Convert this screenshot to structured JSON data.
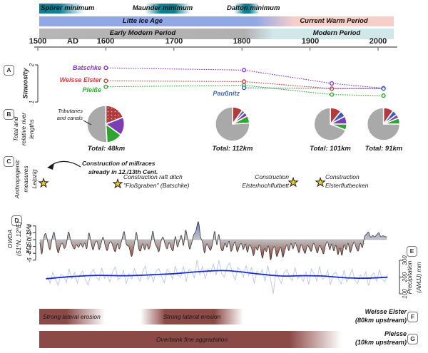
{
  "icons": {
    "star": "★"
  },
  "timeline": {
    "solar_minima": [
      {
        "label": "Spörer minimum"
      },
      {
        "label": "Maunder minimum"
      },
      {
        "label": "Dalton minimum"
      }
    ],
    "climate_bar": {
      "left": "Litte Ice Age",
      "right": "Current Warm Period"
    },
    "culture_bar": {
      "left": "Early Modern Period",
      "right": "Modern Period"
    },
    "axis_labels": [
      "1500",
      "AD",
      "1600",
      "1700",
      "1800",
      "1900",
      "2000"
    ]
  },
  "panels": {
    "A": {
      "badge": "A",
      "ylabel": "Sinuosity"
    },
    "B": {
      "badge": "B",
      "ylabel_lines": [
        "Total and",
        "relative river",
        "lengths"
      ],
      "annotation_lines": [
        "Tributaries",
        "and canals"
      ]
    },
    "C": {
      "badge": "C",
      "ylabel_lines": [
        "Anthropogenic",
        "measures",
        "Leipzig"
      ],
      "events": [
        {
          "lines": [
            "Construction of millraces",
            "already in 12./13th Cent."
          ]
        },
        {
          "lines": [
            "Construction raft ditch",
            "\"Floßgraben\" (Batschke)"
          ]
        },
        {
          "lines": [
            "Construction",
            "Elsterhochflutbett"
          ]
        },
        {
          "lines": [
            "Construction",
            "Elsterflutbecken"
          ]
        }
      ]
    },
    "D": {
      "badge": "D",
      "ylabel_lines": [
        "OWDA",
        "(51°N, 12°E)",
        "PDSI (JJA)"
      ]
    },
    "E": {
      "badge": "E",
      "ylabel_lines": [
        "Precipitation",
        "(AMJJ) mm"
      ]
    },
    "F": {
      "badge": "F",
      "river_lines": [
        "Weisse Elster",
        "(80km upstream)"
      ],
      "bars": [
        {
          "label": "Strong lateral erosion"
        },
        {
          "label": "Strong lateral erosion"
        }
      ]
    },
    "G": {
      "badge": "G",
      "river_lines": [
        "Pleisse",
        "(10km upstream)"
      ],
      "bars": [
        {
          "label": "Overbank fine aggradation"
        }
      ]
    }
  },
  "chart_data": {
    "sinuosity": {
      "type": "line",
      "ylabel": "Sinuosity",
      "ylim": [
        1,
        2
      ],
      "yticks": [
        2,
        1
      ],
      "x_range_years": [
        1600,
        2008
      ],
      "line_style": "dotted",
      "marker": "open-circle",
      "series": [
        {
          "name": "Batschke",
          "color": "#8c36cf",
          "points": [
            [
              1600,
              1.92
            ],
            [
              1803,
              1.86
            ],
            [
              1932,
              1.5
            ],
            [
              2008,
              1.37
            ]
          ]
        },
        {
          "name": "Weisse Elster",
          "color": "#cf4040",
          "points": [
            [
              1600,
              1.57
            ],
            [
              1803,
              1.55
            ],
            [
              1932,
              1.36
            ],
            [
              2008,
              1.37
            ]
          ]
        },
        {
          "name": "Pleiße",
          "color": "#2fae2f",
          "points": [
            [
              1600,
              1.41
            ],
            [
              1803,
              1.45
            ],
            [
              1932,
              1.2
            ],
            [
              2008,
              1.17
            ]
          ]
        },
        {
          "name": "Paußnitz",
          "color": "#3a64cc",
          "points": [
            [
              1803,
              1.38
            ],
            [
              2008,
              1.36
            ]
          ]
        }
      ]
    },
    "river_lengths": {
      "type": "pie",
      "pies": [
        {
          "total_label": "Total: 48km",
          "year": 1600,
          "radius": 26,
          "slices": [
            {
              "name": "weisse-elster",
              "color": "#b23b3e",
              "pct": 19,
              "dotted": true
            },
            {
              "name": "batschke",
              "color": "#7d3db3",
              "pct": 16
            },
            {
              "name": "pleisse",
              "color": "#2fa52f",
              "pct": 14
            },
            {
              "name": "tributaries-and-canals",
              "color": "#a9a9a9",
              "pct": 51
            }
          ]
        },
        {
          "total_label": "Total: 112km",
          "year": 1786,
          "radius": 24,
          "slices": [
            {
              "name": "weisse-elster",
              "color": "#b23b3e",
              "pct": 10
            },
            {
              "name": "paussnitz",
              "color": "#3a5db5",
              "pct": 3
            },
            {
              "name": "batschke",
              "color": "#7d3db3",
              "pct": 4
            },
            {
              "name": "pleisse",
              "color": "#2fa52f",
              "pct": 7
            },
            {
              "name": "tributaries-and-canals",
              "color": "#a9a9a9",
              "pct": 76
            }
          ]
        },
        {
          "total_label": "Total: 101km",
          "year": 1930,
          "radius": 23,
          "slices": [
            {
              "name": "weisse-elster",
              "color": "#b23b3e",
              "pct": 11
            },
            {
              "name": "paussnitz",
              "color": "#3a5db5",
              "pct": 6
            },
            {
              "name": "batschke",
              "color": "#7d3db3",
              "pct": 8
            },
            {
              "name": "pleisse",
              "color": "#2fa52f",
              "pct": 6
            },
            {
              "name": "tributaries-and-canals",
              "color": "#a9a9a9",
              "pct": 69
            }
          ]
        },
        {
          "total_label": "Total: 91km",
          "year": 2008,
          "radius": 23,
          "slices": [
            {
              "name": "weisse-elster",
              "color": "#b23b3e",
              "pct": 10
            },
            {
              "name": "paussnitz",
              "color": "#3a5db5",
              "pct": 5
            },
            {
              "name": "batschke",
              "color": "#7d3db3",
              "pct": 4
            },
            {
              "name": "pleisse",
              "color": "#2fa52f",
              "pct": 6
            },
            {
              "name": "tributaries-and-canals",
              "color": "#a9a9a9",
              "pct": 75
            }
          ]
        }
      ]
    },
    "pdsi": {
      "type": "area",
      "ylabel": "PDSI (JJA)",
      "ylim": [
        -6,
        4
      ],
      "yticks": [
        4,
        2,
        0,
        -2,
        -4,
        -6
      ],
      "points": [
        [
          1503,
          -0.8
        ],
        [
          1506,
          -4.2
        ],
        [
          1509,
          0.6
        ],
        [
          1512,
          1.7
        ],
        [
          1515,
          -1.1
        ],
        [
          1518,
          -2.9
        ],
        [
          1521,
          0.4
        ],
        [
          1524,
          2.1
        ],
        [
          1527,
          -1.6
        ],
        [
          1530,
          -3.9
        ],
        [
          1533,
          -1.9
        ],
        [
          1536,
          -1.1
        ],
        [
          1539,
          -2.6
        ],
        [
          1542,
          -1.3
        ],
        [
          1545,
          2.2
        ],
        [
          1548,
          0.1
        ],
        [
          1551,
          -1.9
        ],
        [
          1554,
          -2.7
        ],
        [
          1557,
          -1.5
        ],
        [
          1560,
          -2.3
        ],
        [
          1563,
          -1.1
        ],
        [
          1566,
          -2.2
        ],
        [
          1569,
          -1.0
        ],
        [
          1572,
          -2.6
        ],
        [
          1575,
          1.9
        ],
        [
          1578,
          -0.6
        ],
        [
          1581,
          -3.0
        ],
        [
          1584,
          -1.1
        ],
        [
          1587,
          -0.5
        ],
        [
          1590,
          -2.9
        ],
        [
          1593,
          -1.2
        ],
        [
          1596,
          0.7
        ],
        [
          1599,
          -1.7
        ],
        [
          1602,
          -3.2
        ],
        [
          1605,
          -1.1
        ],
        [
          1608,
          -0.7
        ],
        [
          1611,
          -2.4
        ],
        [
          1614,
          -3.5
        ],
        [
          1617,
          -1.2
        ],
        [
          1620,
          -2.7
        ],
        [
          1624,
          0.4
        ],
        [
          1627,
          2.3
        ],
        [
          1630,
          -1.3
        ],
        [
          1634,
          -2.1
        ],
        [
          1638,
          -4.9
        ],
        [
          1642,
          -1.1
        ],
        [
          1645,
          2.1
        ],
        [
          1648,
          -2.3
        ],
        [
          1651,
          -3.3
        ],
        [
          1654,
          -1.2
        ],
        [
          1657,
          -3.0
        ],
        [
          1660,
          -1.4
        ],
        [
          1663,
          -2.8
        ],
        [
          1666,
          -1.1
        ],
        [
          1669,
          2.5
        ],
        [
          1672,
          -0.9
        ],
        [
          1675,
          -2.2
        ],
        [
          1678,
          -3.5
        ],
        [
          1681,
          -0.6
        ],
        [
          1684,
          0.7
        ],
        [
          1687,
          -1.3
        ],
        [
          1690,
          -2.7
        ],
        [
          1693,
          -0.9
        ],
        [
          1696,
          -2.5
        ],
        [
          1699,
          -3.1
        ],
        [
          1702,
          0.9
        ],
        [
          1705,
          -2.1
        ],
        [
          1708,
          -0.5
        ],
        [
          1711,
          1.2
        ],
        [
          1714,
          -1.7
        ],
        [
          1717,
          2.7
        ],
        [
          1720,
          0.5
        ],
        [
          1723,
          -2.7
        ],
        [
          1726,
          -1.1
        ],
        [
          1729,
          1.4
        ],
        [
          1732,
          2.3
        ],
        [
          1736,
          5.2
        ],
        [
          1739,
          0.9
        ],
        [
          1742,
          -0.7
        ],
        [
          1745,
          -3.9
        ],
        [
          1748,
          -1.3
        ],
        [
          1751,
          -2.2
        ],
        [
          1754,
          -3.1
        ],
        [
          1757,
          -0.9
        ],
        [
          1760,
          2.4
        ],
        [
          1763,
          -1.5
        ],
        [
          1766,
          1.5
        ],
        [
          1769,
          -2.4
        ],
        [
          1772,
          -3.2
        ],
        [
          1775,
          -1.1
        ],
        [
          1778,
          -2.2
        ],
        [
          1781,
          -0.5
        ],
        [
          1784,
          -3.4
        ],
        [
          1787,
          -1.9
        ],
        [
          1790,
          -0.7
        ],
        [
          1793,
          -3.5
        ],
        [
          1796,
          -2.1
        ],
        [
          1799,
          -1.1
        ],
        [
          1802,
          -2.9
        ],
        [
          1805,
          -1.3
        ],
        [
          1808,
          -3.7
        ],
        [
          1811,
          -1.6
        ],
        [
          1814,
          -2.5
        ],
        [
          1817,
          -4.7
        ],
        [
          1820,
          -2.3
        ],
        [
          1823,
          -3.1
        ],
        [
          1826,
          -1.6
        ],
        [
          1830,
          -5.4
        ],
        [
          1833,
          -2.7
        ],
        [
          1836,
          -3.5
        ],
        [
          1839,
          -1.9
        ],
        [
          1842,
          -5.9
        ],
        [
          1845,
          -3.1
        ],
        [
          1848,
          -2.1
        ],
        [
          1851,
          -4.9
        ],
        [
          1854,
          -3.5
        ],
        [
          1857,
          -2.3
        ],
        [
          1860,
          -5.1
        ],
        [
          1863,
          -3.1
        ],
        [
          1866,
          -1.5
        ],
        [
          1869,
          -3.2
        ],
        [
          1872,
          -1.1
        ],
        [
          1875,
          -2.7
        ],
        [
          1878,
          -0.9
        ],
        [
          1881,
          -2.3
        ],
        [
          1884,
          -3.8
        ],
        [
          1887,
          -1.5
        ],
        [
          1890,
          -2.9
        ],
        [
          1893,
          -4.0
        ],
        [
          1896,
          -1.7
        ],
        [
          1899,
          -2.5
        ],
        [
          1902,
          -3.4
        ],
        [
          1905,
          -1.1
        ],
        [
          1908,
          -2.3
        ],
        [
          1911,
          -3.9
        ],
        [
          1914,
          -1.7
        ],
        [
          1917,
          -2.9
        ],
        [
          1920,
          -4.1
        ],
        [
          1923,
          -1.5
        ],
        [
          1926,
          -0.7
        ],
        [
          1929,
          -2.9
        ],
        [
          1932,
          -1.3
        ],
        [
          1935,
          -3.3
        ],
        [
          1938,
          -1.7
        ],
        [
          1941,
          -4.4
        ],
        [
          1944,
          -2.5
        ],
        [
          1947,
          -4.6
        ],
        [
          1950,
          -1.5
        ],
        [
          1953,
          -2.9
        ],
        [
          1956,
          -1.1
        ],
        [
          1959,
          -3.7
        ],
        [
          1962,
          -2.1
        ],
        [
          1965,
          -0.7
        ],
        [
          1968,
          -2.5
        ],
        [
          1971,
          -3.3
        ],
        [
          1974,
          -1.1
        ],
        [
          1977,
          -2.3
        ],
        [
          1980,
          0.8
        ],
        [
          1983,
          1.6
        ],
        [
          1986,
          2.2
        ],
        [
          1989,
          0.7
        ],
        [
          1992,
          1.2
        ],
        [
          1995,
          0.8
        ],
        [
          1998,
          1.4
        ],
        [
          2001,
          2.0
        ],
        [
          2004,
          0.9
        ],
        [
          2007,
          1.1
        ],
        [
          2010,
          0.9
        ],
        [
          2013,
          0.8
        ]
      ]
    },
    "precipitation": {
      "type": "line",
      "ylabel": "Precipitation (AMJJ) mm",
      "ylim": [
        100,
        300
      ],
      "yticks": [
        300,
        200,
        100
      ],
      "trend": [
        [
          1512,
          190
        ],
        [
          1550,
          203
        ],
        [
          1590,
          210
        ],
        [
          1630,
          208
        ],
        [
          1670,
          214
        ],
        [
          1700,
          220
        ],
        [
          1730,
          230
        ],
        [
          1760,
          238
        ],
        [
          1780,
          238
        ],
        [
          1800,
          230
        ],
        [
          1830,
          216
        ],
        [
          1860,
          206
        ],
        [
          1890,
          208
        ],
        [
          1920,
          206
        ],
        [
          1950,
          196
        ],
        [
          1980,
          193
        ],
        [
          2014,
          199
        ]
      ],
      "annual_start_year": 1514,
      "annual_step": 4,
      "annual_anomalies": [
        12,
        -28,
        35,
        -8,
        -45,
        20,
        5,
        -32,
        48,
        -15,
        25,
        -40,
        8,
        30,
        -22,
        -55,
        15,
        38,
        -10,
        -30,
        45,
        -18,
        5,
        -38,
        25,
        52,
        -25,
        -8,
        30,
        -48,
        12,
        -20,
        40,
        -5,
        -35,
        18,
        55,
        -28,
        8,
        -42,
        22,
        35,
        -15,
        -50,
        28,
        10,
        -32,
        45,
        -12,
        -25,
        38,
        -55,
        18,
        5,
        -35,
        70,
        -20,
        30,
        -45,
        12,
        -8,
        40,
        -28,
        62,
        -15,
        -38,
        22,
        48,
        -10,
        -52,
        25,
        8,
        -30,
        42,
        -18,
        35,
        -62,
        15,
        -5,
        28,
        -40,
        55,
        -22,
        -110,
        32,
        -15,
        -45,
        20,
        38,
        -8,
        -28,
        50,
        -18,
        5,
        -35,
        25,
        -52,
        40,
        12,
        -30,
        58,
        -20,
        -8,
        35,
        -48,
        15,
        28,
        -12,
        -38,
        45,
        -25,
        8,
        52,
        -15,
        -32,
        20,
        -5,
        38,
        -45,
        12,
        30,
        -22,
        48,
        -10,
        -28,
        18
      ]
    }
  }
}
